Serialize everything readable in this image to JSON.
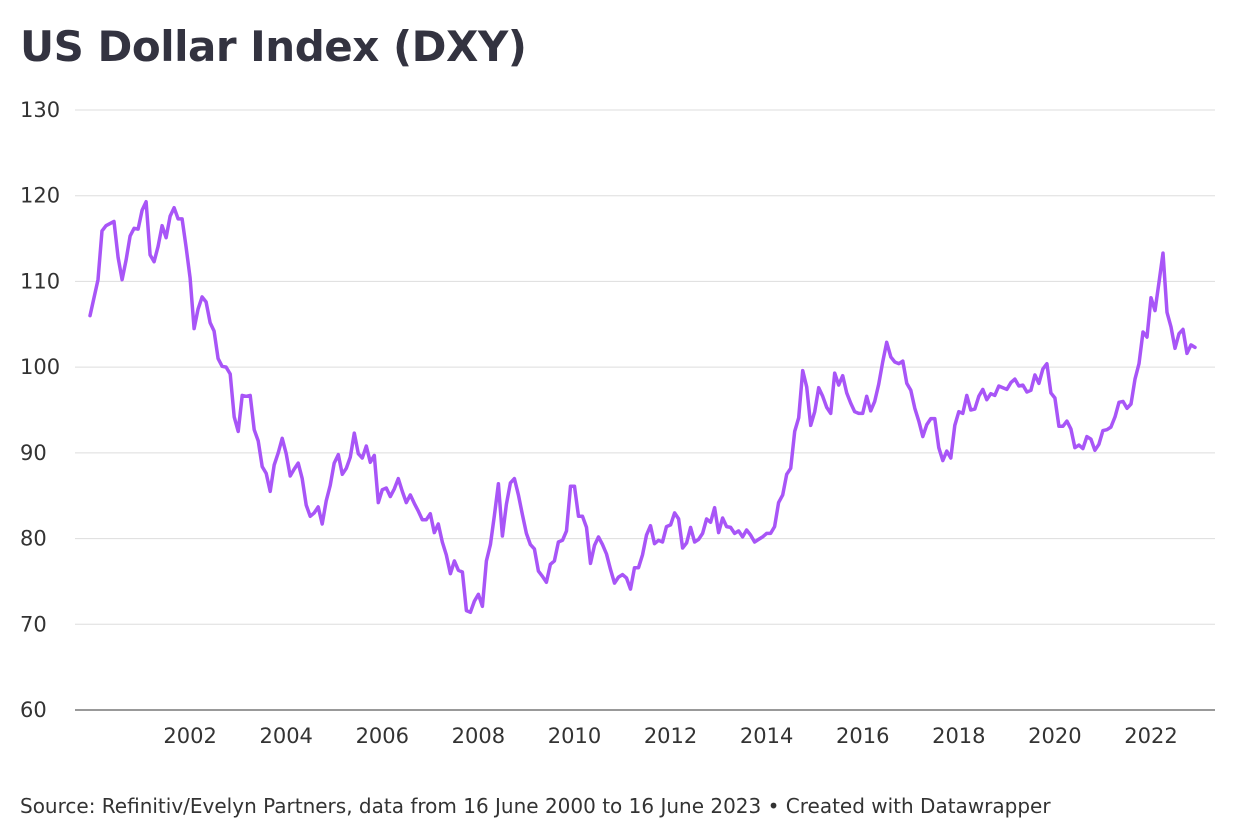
{
  "title": "US Dollar Index (DXY)",
  "footer": {
    "source": "Source: Refinitiv/Evelyn Partners, data from 16 June 2000 to 16 June 2023 • Created with Datawrapper"
  },
  "colors": {
    "line": "#a855f7",
    "grid": "#dddddd",
    "text": "#333333"
  },
  "chart_data": {
    "type": "line",
    "title": "US Dollar Index (DXY)",
    "xlabel": "",
    "ylabel": "",
    "xlim": [
      "2000-06-16",
      "2023-06-16"
    ],
    "ylim": [
      60,
      130
    ],
    "yticks": [
      60,
      70,
      80,
      90,
      100,
      110,
      120,
      130
    ],
    "xticks": [
      "2002",
      "2004",
      "2006",
      "2008",
      "2010",
      "2012",
      "2014",
      "2016",
      "2018",
      "2020",
      "2022"
    ],
    "grid": "horizontal",
    "series": [
      {
        "x": [
          "2000-06",
          "2000-08",
          "2000-09",
          "2000-10",
          "2000-12",
          "2001-01",
          "2001-02",
          "2001-03",
          "2001-04",
          "2001-05",
          "2001-06",
          "2001-07",
          "2001-08",
          "2001-09",
          "2001-10",
          "2001-11",
          "2001-12",
          "2002-01",
          "2002-02",
          "2002-03",
          "2002-04",
          "2002-05",
          "2002-06",
          "2002-07",
          "2002-08",
          "2002-09",
          "2002-10",
          "2002-11",
          "2002-12",
          "2003-01",
          "2003-02",
          "2003-03",
          "2003-04",
          "2003-05",
          "2003-06",
          "2003-07",
          "2003-08",
          "2003-09",
          "2003-10",
          "2003-11",
          "2003-12",
          "2004-01",
          "2004-02",
          "2004-03",
          "2004-04",
          "2004-05",
          "2004-06",
          "2004-07",
          "2004-08",
          "2004-09",
          "2004-10",
          "2004-11",
          "2004-12",
          "2005-01",
          "2005-02",
          "2005-03",
          "2005-04",
          "2005-05",
          "2005-06",
          "2005-07",
          "2005-08",
          "2005-09",
          "2005-10",
          "2005-11",
          "2005-12",
          "2006-01",
          "2006-02",
          "2006-03",
          "2006-04",
          "2006-05",
          "2006-06",
          "2006-07",
          "2006-08",
          "2006-09",
          "2006-10",
          "2006-11",
          "2006-12",
          "2007-01",
          "2007-02",
          "2007-03",
          "2007-04",
          "2007-05",
          "2007-06",
          "2007-07",
          "2007-08",
          "2007-09",
          "2007-10",
          "2007-11",
          "2007-12",
          "2008-01",
          "2008-02",
          "2008-03",
          "2008-04",
          "2008-05",
          "2008-06",
          "2008-07",
          "2008-08",
          "2008-09",
          "2008-10",
          "2008-11",
          "2008-12",
          "2009-01",
          "2009-02",
          "2009-03",
          "2009-04",
          "2009-05",
          "2009-06",
          "2009-07",
          "2009-08",
          "2009-09",
          "2009-10",
          "2009-11",
          "2009-12",
          "2010-01",
          "2010-02",
          "2010-03",
          "2010-04",
          "2010-05",
          "2010-06",
          "2010-07",
          "2010-08",
          "2010-09",
          "2010-10",
          "2010-11",
          "2010-12",
          "2011-01",
          "2011-02",
          "2011-03",
          "2011-04",
          "2011-05",
          "2011-06",
          "2011-07",
          "2011-08",
          "2011-09",
          "2011-10",
          "2011-11",
          "2011-12",
          "2012-01",
          "2012-02",
          "2012-03",
          "2012-04",
          "2012-05",
          "2012-06",
          "2012-07",
          "2012-08",
          "2012-09",
          "2012-10",
          "2012-11",
          "2012-12",
          "2013-01",
          "2013-02",
          "2013-03",
          "2013-04",
          "2013-05",
          "2013-06",
          "2013-07",
          "2013-08",
          "2013-09",
          "2013-10",
          "2013-11",
          "2013-12",
          "2014-01",
          "2014-02",
          "2014-03",
          "2014-04",
          "2014-05",
          "2014-06",
          "2014-07",
          "2014-08",
          "2014-09",
          "2014-10",
          "2014-11",
          "2014-12",
          "2015-01",
          "2015-02",
          "2015-03",
          "2015-04",
          "2015-05",
          "2015-06",
          "2015-07",
          "2015-08",
          "2015-09",
          "2015-10",
          "2015-11",
          "2015-12",
          "2016-01",
          "2016-02",
          "2016-03",
          "2016-04",
          "2016-05",
          "2016-06",
          "2016-07",
          "2016-08",
          "2016-09",
          "2016-10",
          "2016-11",
          "2016-12",
          "2017-01",
          "2017-02",
          "2017-03",
          "2017-04",
          "2017-05",
          "2017-06",
          "2017-07",
          "2017-08",
          "2017-09",
          "2017-10",
          "2017-11",
          "2017-12",
          "2018-01",
          "2018-02",
          "2018-03",
          "2018-04",
          "2018-05",
          "2018-06",
          "2018-07",
          "2018-08",
          "2018-09",
          "2018-10",
          "2018-11",
          "2018-12",
          "2019-01",
          "2019-02",
          "2019-03",
          "2019-04",
          "2019-05",
          "2019-06",
          "2019-07",
          "2019-08",
          "2019-09",
          "2019-10",
          "2019-11",
          "2019-12",
          "2020-01",
          "2020-02",
          "2020-03",
          "2020-04",
          "2020-05",
          "2020-06",
          "2020-07",
          "2020-08",
          "2020-09",
          "2020-10",
          "2020-11",
          "2020-12",
          "2021-01",
          "2021-02",
          "2021-03",
          "2021-04",
          "2021-05",
          "2021-06",
          "2021-07",
          "2021-08",
          "2021-09",
          "2021-10",
          "2021-11",
          "2021-12",
          "2022-01",
          "2022-02",
          "2022-03",
          "2022-04",
          "2022-05",
          "2022-06",
          "2022-07",
          "2022-08",
          "2022-09",
          "2022-10",
          "2022-11",
          "2022-12",
          "2023-01",
          "2023-02",
          "2023-03",
          "2023-04",
          "2023-05",
          "2023-06"
        ],
        "values": [
          106.0,
          110.2,
          115.9,
          116.5,
          117.0,
          112.8,
          110.2,
          112.5,
          115.3,
          116.2,
          116.1,
          118.3,
          119.3,
          113.1,
          112.3,
          114.1,
          116.5,
          115.1,
          117.6,
          118.6,
          117.3,
          117.3,
          114.0,
          110.4,
          104.5,
          106.8,
          108.2,
          107.6,
          105.2,
          104.2,
          101.0,
          100.1,
          100.0,
          99.2,
          94.2,
          92.5,
          96.7,
          96.6,
          96.7,
          92.7,
          91.4,
          88.4,
          87.6,
          85.5,
          88.6,
          90.0,
          91.7,
          89.9,
          87.3,
          88.1,
          88.8,
          87.0,
          83.9,
          82.6,
          83.0,
          83.7,
          81.7,
          84.4,
          86.2,
          88.8,
          89.8,
          87.5,
          88.2,
          89.5,
          92.3,
          89.9,
          89.4,
          90.8,
          88.9,
          89.7,
          84.2,
          85.7,
          85.9,
          84.9,
          85.8,
          87.0,
          85.5,
          84.2,
          85.1,
          84.1,
          83.2,
          82.2,
          82.2,
          82.9,
          80.7,
          81.7,
          79.6,
          78.1,
          75.9,
          77.4,
          76.3,
          76.1,
          71.6,
          71.4,
          72.7,
          73.5,
          72.1,
          77.4,
          79.3,
          82.7,
          86.4,
          80.3,
          84.0,
          86.5,
          87.0,
          85.1,
          82.8,
          80.6,
          79.3,
          78.8,
          76.2,
          75.6,
          74.9,
          77.0,
          77.4,
          79.6,
          79.8,
          80.9,
          86.1,
          86.1,
          82.6,
          82.6,
          81.3,
          77.1,
          79.2,
          80.2,
          79.3,
          78.2,
          76.4,
          74.8,
          75.5,
          75.8,
          75.4,
          74.1,
          76.6,
          76.6,
          78.1,
          80.4,
          81.5,
          79.4,
          79.8,
          79.6,
          81.4,
          81.6,
          83.0,
          82.3,
          78.9,
          79.5,
          81.3,
          79.6,
          79.9,
          80.6,
          82.3,
          81.9,
          83.6,
          80.7,
          82.4,
          81.4,
          81.3,
          80.6,
          80.9,
          80.2,
          81.0,
          80.4,
          79.6,
          79.9,
          80.2,
          80.6,
          80.6,
          81.4,
          84.2,
          85.1,
          87.5,
          88.2,
          92.5,
          94.1,
          99.6,
          97.7,
          93.2,
          94.8,
          97.6,
          96.6,
          95.3,
          94.6,
          99.3,
          97.9,
          99.0,
          97.0,
          95.8,
          94.8,
          94.6,
          94.6,
          96.6,
          94.9,
          96.0,
          98.0,
          100.6,
          102.9,
          101.2,
          100.6,
          100.4,
          100.7,
          98.1,
          97.3,
          95.2,
          93.7,
          91.9,
          93.3,
          94.0,
          94.0,
          90.6,
          89.1,
          90.2,
          89.4,
          93.2,
          94.8,
          94.6,
          96.7,
          95.0,
          95.1,
          96.6,
          97.4,
          96.2,
          96.9,
          96.7,
          97.8,
          97.6,
          97.4,
          98.2,
          98.6,
          97.8,
          97.9,
          97.1,
          97.3,
          99.1,
          98.1,
          99.8,
          100.4,
          97.0,
          96.4,
          93.1,
          93.1,
          93.7,
          92.8,
          90.6,
          90.9,
          90.5,
          91.9,
          91.6,
          90.3,
          91.0,
          92.6,
          92.7,
          93.0,
          94.2,
          95.9,
          96.0,
          95.2,
          95.7,
          98.6,
          100.4,
          104.1,
          103.5,
          108.1,
          106.6,
          109.9,
          113.3,
          106.4,
          104.7,
          102.2,
          103.9,
          104.4,
          101.6,
          102.6,
          102.3
        ]
      }
    ]
  }
}
